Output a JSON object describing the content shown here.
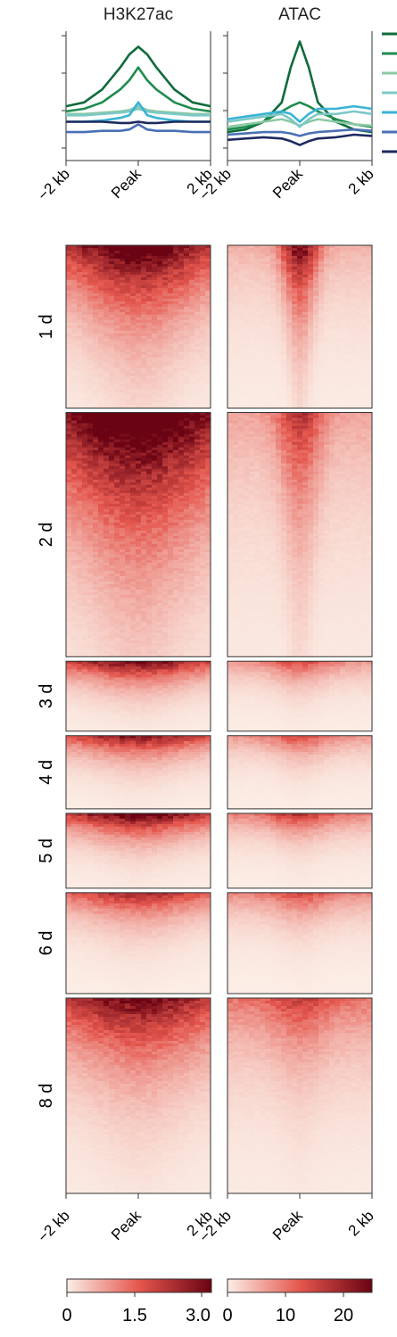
{
  "chart_data": [
    {
      "type": "line",
      "title": "H3K27ac",
      "x_tick_labels": [
        "−2 kb",
        "Peak",
        "2 kb"
      ],
      "y_axis_labels": "",
      "x": [
        -2,
        -1.5,
        -1,
        -0.5,
        -0.25,
        0,
        0.25,
        0.5,
        1,
        1.5,
        2
      ],
      "ylim": [
        0,
        1
      ],
      "series": [
        {
          "color": "#0f6b3a",
          "values": [
            0.42,
            0.45,
            0.55,
            0.72,
            0.82,
            0.88,
            0.82,
            0.72,
            0.55,
            0.45,
            0.42
          ]
        },
        {
          "color": "#1f8c4e",
          "values": [
            0.38,
            0.4,
            0.45,
            0.55,
            0.62,
            0.72,
            0.62,
            0.55,
            0.45,
            0.4,
            0.38
          ]
        },
        {
          "color": "#8cc9a4",
          "values": [
            0.36,
            0.36,
            0.37,
            0.38,
            0.39,
            0.42,
            0.39,
            0.38,
            0.37,
            0.36,
            0.36
          ]
        },
        {
          "color": "#7cc8c6",
          "values": [
            0.35,
            0.35,
            0.36,
            0.37,
            0.38,
            0.4,
            0.38,
            0.37,
            0.36,
            0.35,
            0.35
          ]
        },
        {
          "color": "#39b3d6",
          "values": [
            0.3,
            0.3,
            0.31,
            0.33,
            0.35,
            0.45,
            0.35,
            0.33,
            0.31,
            0.3,
            0.3
          ]
        },
        {
          "color": "#4a6fb5",
          "values": [
            0.22,
            0.22,
            0.23,
            0.23,
            0.24,
            0.28,
            0.24,
            0.23,
            0.23,
            0.22,
            0.22
          ]
        },
        {
          "color": "#1e2a5e",
          "values": [
            0.3,
            0.3,
            0.3,
            0.29,
            0.29,
            0.3,
            0.29,
            0.29,
            0.3,
            0.3,
            0.3
          ]
        }
      ]
    },
    {
      "type": "line",
      "title": "ATAC",
      "x_tick_labels": [
        "−2 kb",
        "Peak",
        "2 kb"
      ],
      "x": [
        -2,
        -1.5,
        -1,
        -0.5,
        -0.25,
        0,
        0.25,
        0.5,
        1,
        1.5,
        2
      ],
      "ylim": [
        0,
        1
      ],
      "series": [
        {
          "color": "#0f6b3a",
          "values": [
            0.22,
            0.24,
            0.3,
            0.45,
            0.72,
            0.92,
            0.72,
            0.45,
            0.3,
            0.24,
            0.22
          ]
        },
        {
          "color": "#1f8c4e",
          "values": [
            0.24,
            0.26,
            0.3,
            0.38,
            0.42,
            0.45,
            0.42,
            0.38,
            0.32,
            0.28,
            0.26
          ]
        },
        {
          "color": "#8cc9a4",
          "values": [
            0.26,
            0.28,
            0.3,
            0.32,
            0.3,
            0.27,
            0.3,
            0.32,
            0.3,
            0.28,
            0.27
          ]
        },
        {
          "color": "#7cc8c6",
          "values": [
            0.3,
            0.32,
            0.34,
            0.36,
            0.32,
            0.26,
            0.32,
            0.36,
            0.36,
            0.38,
            0.36
          ]
        },
        {
          "color": "#39b3d6",
          "values": [
            0.32,
            0.34,
            0.36,
            0.38,
            0.36,
            0.3,
            0.36,
            0.4,
            0.4,
            0.42,
            0.4
          ]
        },
        {
          "color": "#4a6fb5",
          "values": [
            0.2,
            0.21,
            0.22,
            0.22,
            0.21,
            0.19,
            0.21,
            0.22,
            0.23,
            0.24,
            0.23
          ]
        },
        {
          "color": "#1e2a5e",
          "values": [
            0.16,
            0.17,
            0.18,
            0.17,
            0.15,
            0.12,
            0.15,
            0.17,
            0.18,
            0.2,
            0.19
          ]
        }
      ]
    },
    {
      "type": "heatmap",
      "row_groups": [
        "1 d",
        "2 d",
        "3 d",
        "4 d",
        "5 d",
        "6 d",
        "8 d"
      ],
      "row_group_sizes": [
        100,
        150,
        43,
        45,
        46,
        62,
        120
      ],
      "x_tick_labels": [
        "−2 kb",
        "Peak",
        "2 kb"
      ],
      "panels": [
        {
          "name": "H3K27ac",
          "colorbar": {
            "ticks": [
              "0",
              "1.5",
              "3.0"
            ],
            "min": 0,
            "max": 3.2,
            "colors": [
              "#fbeee6",
              "#e4564d",
              "#6a0313"
            ]
          },
          "group_intensity": [
            {
              "center": 2.5,
              "base": 1.3,
              "width": 0.7,
              "decay": 1.6
            },
            {
              "center": 2.6,
              "base": 1.8,
              "width": 0.8,
              "decay": 1.4
            },
            {
              "center": 1.7,
              "base": 1.4,
              "width": 0.6,
              "decay": 2.2
            },
            {
              "center": 1.5,
              "base": 1.3,
              "width": 0.6,
              "decay": 2.4
            },
            {
              "center": 1.9,
              "base": 1.6,
              "width": 0.6,
              "decay": 2.4
            },
            {
              "center": 1.3,
              "base": 1.1,
              "width": 0.6,
              "decay": 2.6
            },
            {
              "center": 1.7,
              "base": 1.5,
              "width": 0.7,
              "decay": 2.0
            }
          ]
        },
        {
          "name": "ATAC",
          "colorbar": {
            "ticks": [
              "0",
              "10",
              "20"
            ],
            "min": 0,
            "max": 25,
            "colors": [
              "#fbeee6",
              "#e4564d",
              "#6a0313"
            ]
          },
          "group_intensity": [
            {
              "center": 20,
              "base": 5,
              "width": 0.18,
              "decay": 1.6
            },
            {
              "center": 12,
              "base": 6,
              "width": 0.22,
              "decay": 1.4
            },
            {
              "center": 7,
              "base": 7,
              "width": 0.3,
              "decay": 2.2
            },
            {
              "center": 7,
              "base": 7,
              "width": 0.3,
              "decay": 2.4
            },
            {
              "center": 8,
              "base": 9,
              "width": 0.3,
              "decay": 2.4
            },
            {
              "center": 6,
              "base": 8,
              "width": 0.3,
              "decay": 2.6
            },
            {
              "center": 6,
              "base": 10,
              "width": 0.3,
              "decay": 2.0
            }
          ]
        }
      ]
    }
  ]
}
